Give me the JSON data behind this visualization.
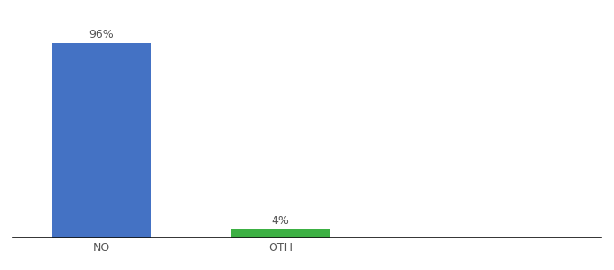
{
  "categories": [
    "NO",
    "OTH"
  ],
  "values": [
    96,
    4
  ],
  "bar_colors": [
    "#4472c4",
    "#3cb043"
  ],
  "value_labels": [
    "96%",
    "4%"
  ],
  "ylim": [
    0,
    108
  ],
  "background_color": "#ffffff",
  "label_fontsize": 9,
  "tick_fontsize": 9,
  "bar_width": 0.55,
  "x_positions": [
    0,
    1
  ],
  "xlim": [
    -0.5,
    2.8
  ]
}
